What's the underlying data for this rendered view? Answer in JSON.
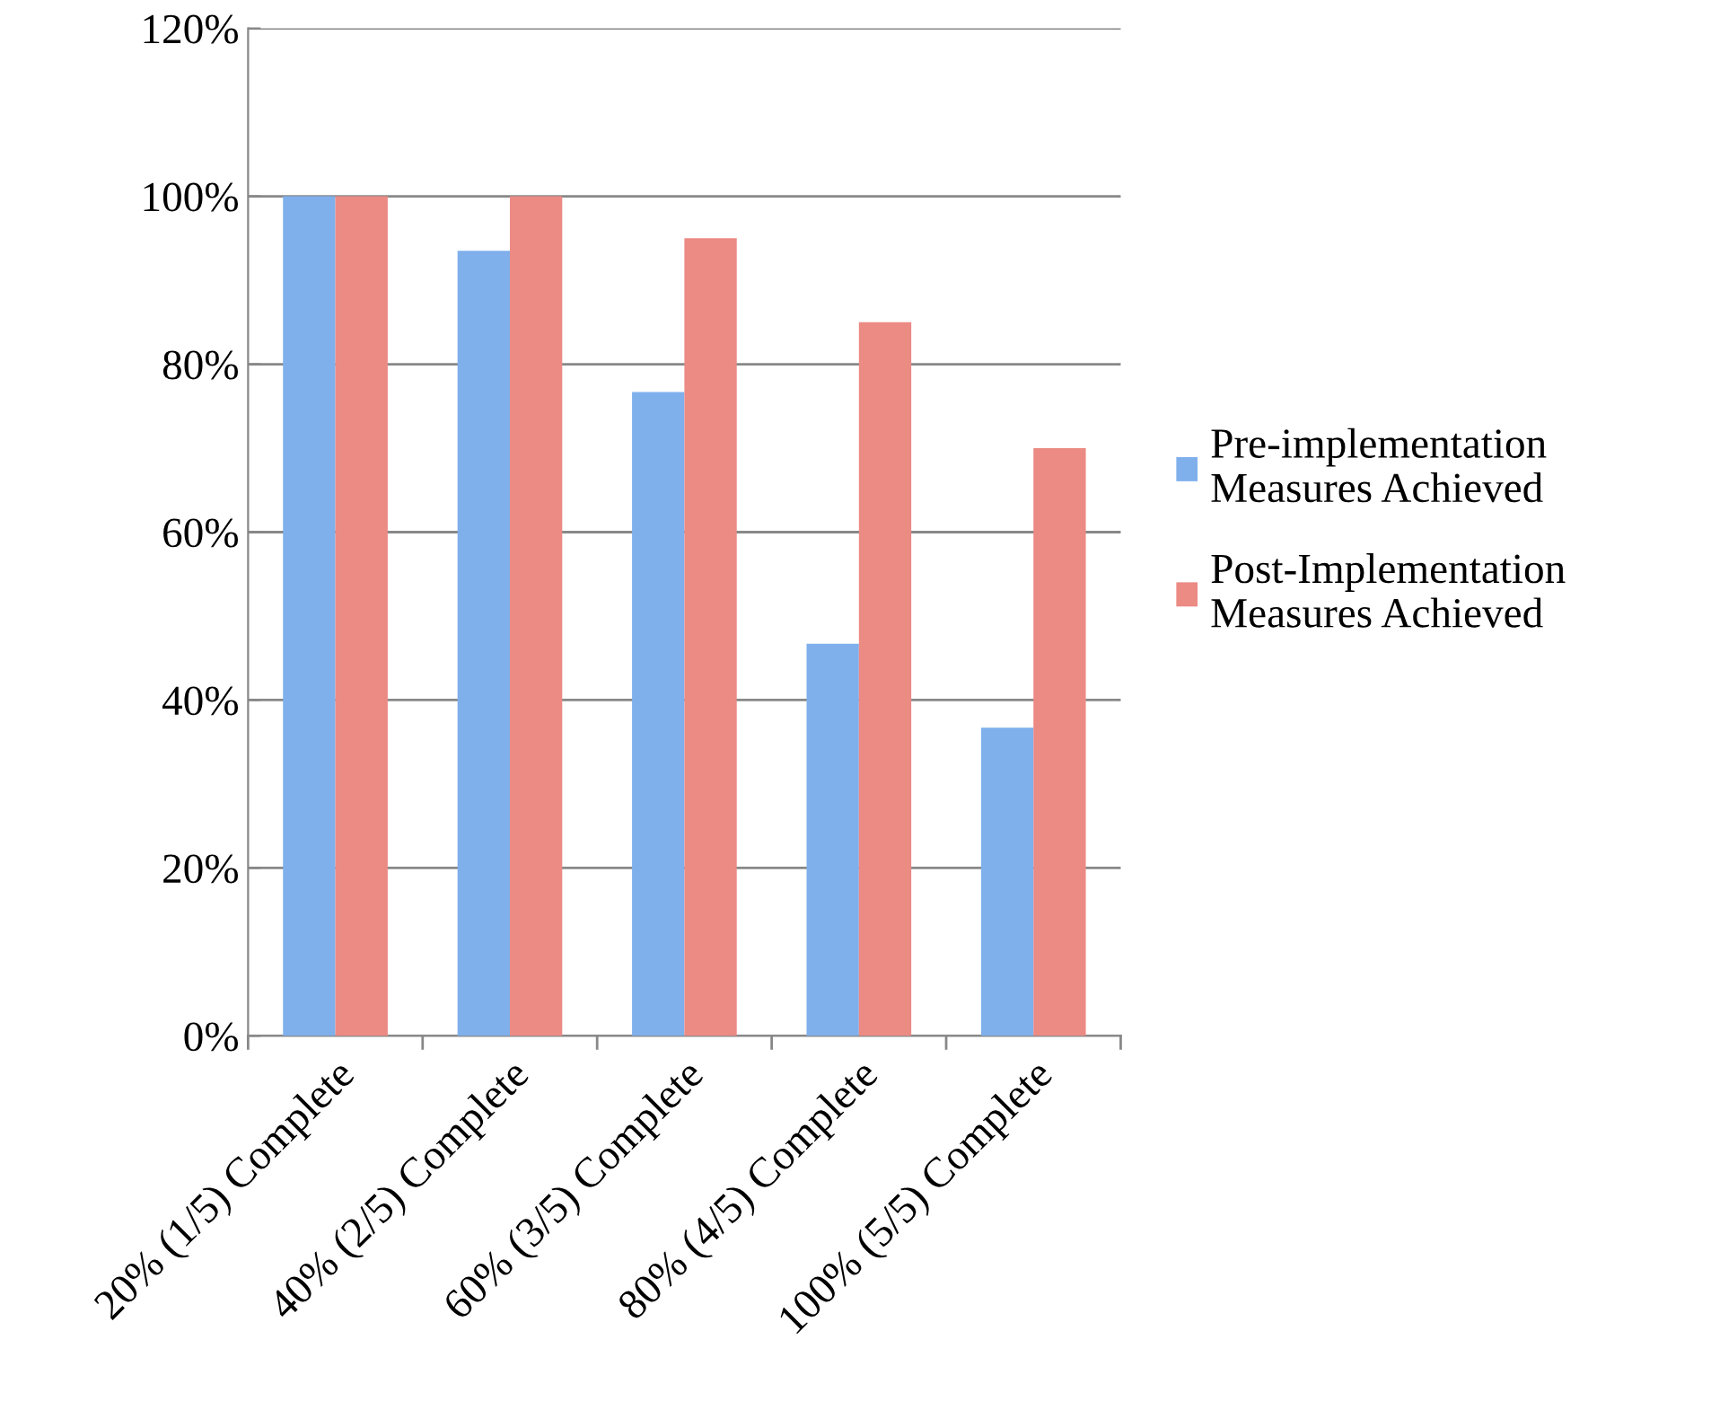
{
  "chart_data": {
    "type": "bar",
    "categories": [
      "20% (1/5) Complete",
      "40% (2/5) Complete",
      "60% (3/5) Complete",
      "80% (4/5) Complete",
      "100% (5/5) Complete"
    ],
    "series": [
      {
        "name": "Pre-implementation\nMeasures Achieved",
        "color": "#7fb0ec",
        "values": [
          100,
          93.5,
          76.7,
          46.7,
          36.7
        ]
      },
      {
        "name": "Post-Implementation\nMeasures Achieved",
        "color": "#ec8a84",
        "values": [
          100,
          100,
          95,
          85,
          70
        ]
      }
    ],
    "ylim": [
      0,
      120
    ],
    "yticks": [
      {
        "value": 0,
        "label": "0%"
      },
      {
        "value": 20,
        "label": "20%"
      },
      {
        "value": 40,
        "label": "40%"
      },
      {
        "value": 60,
        "label": "60%"
      },
      {
        "value": 80,
        "label": "80%"
      },
      {
        "value": 100,
        "label": "100%"
      },
      {
        "value": 120,
        "label": "120%"
      }
    ],
    "grid": "y",
    "legend": "right"
  }
}
